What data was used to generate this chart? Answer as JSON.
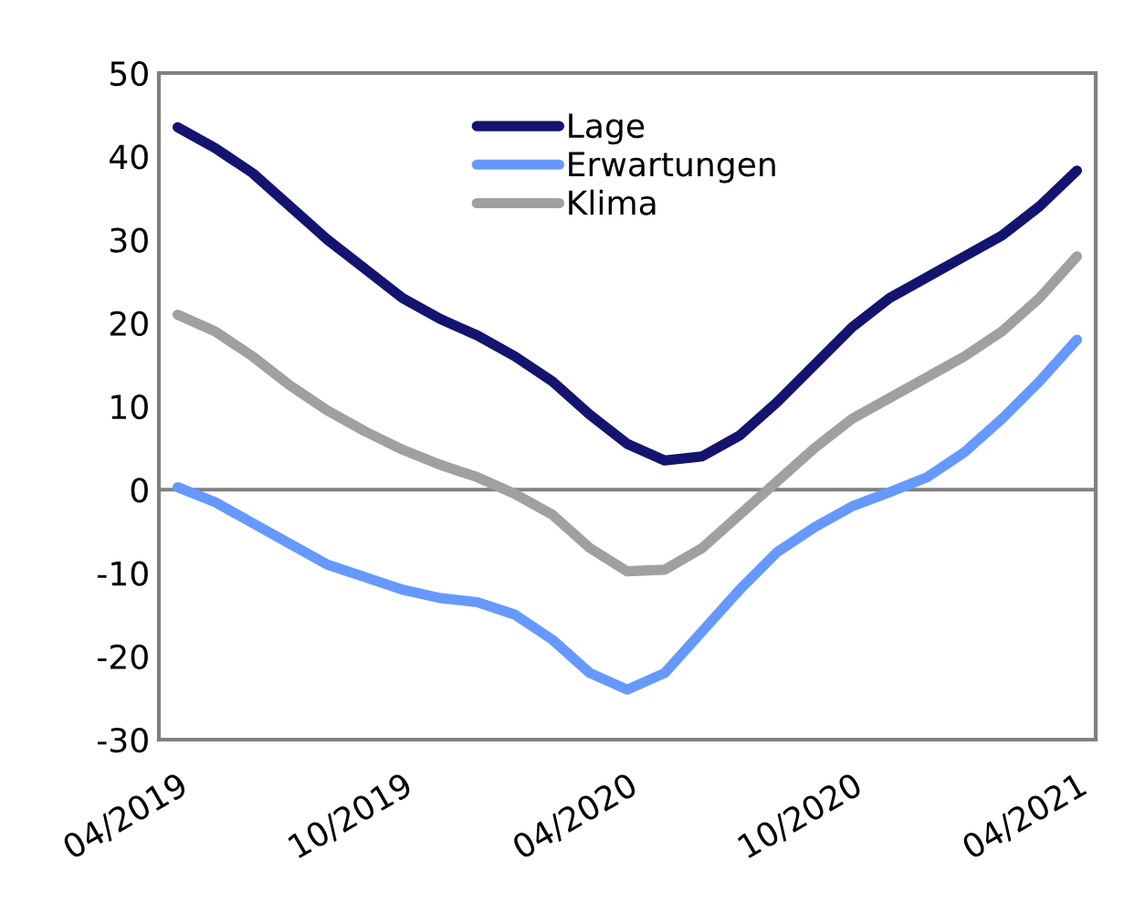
{
  "chart_data": {
    "type": "line",
    "categories": [
      "04/2019",
      null,
      null,
      null,
      null,
      null,
      "10/2019",
      null,
      null,
      null,
      null,
      null,
      "04/2020",
      null,
      null,
      null,
      null,
      null,
      "10/2020",
      null,
      null,
      null,
      null,
      null,
      "04/2021"
    ],
    "series": [
      {
        "name": "Lage",
        "color": "#141470",
        "values": [
          43.5,
          41,
          38,
          34,
          30,
          26.5,
          23,
          20.5,
          18.5,
          16,
          13,
          9,
          5.5,
          3.5,
          4,
          6.5,
          10.5,
          15,
          19.5,
          23,
          25.5,
          28,
          30.5,
          34,
          38.3
        ]
      },
      {
        "name": "Erwartungen",
        "color": "#6699ff",
        "values": [
          0.3,
          -1.5,
          -4,
          -6.5,
          -9,
          -10.5,
          -12,
          -13,
          -13.5,
          -15,
          -18,
          -22,
          -24,
          -22,
          -17,
          -12,
          -7.5,
          -4.5,
          -2,
          -0.3,
          1.5,
          4.5,
          8.5,
          13,
          18
        ]
      },
      {
        "name": "Klima",
        "color": "#a0a0a0",
        "values": [
          21,
          19,
          16,
          12.5,
          9.5,
          7,
          4.8,
          3,
          1.5,
          -0.5,
          -3,
          -7,
          -9.8,
          -9.6,
          -7,
          -3,
          1,
          5,
          8.5,
          11,
          13.5,
          16,
          19,
          23,
          28
        ]
      }
    ],
    "ylim": [
      -30,
      50
    ],
    "yticks": [
      -30,
      -20,
      -10,
      0,
      10,
      20,
      30,
      40,
      50
    ],
    "ref_lines": [
      {
        "axis": "y",
        "value": 0,
        "color": "#808080"
      }
    ],
    "grid": false,
    "legend": "top",
    "line_style": "solid",
    "marker": "none"
  }
}
